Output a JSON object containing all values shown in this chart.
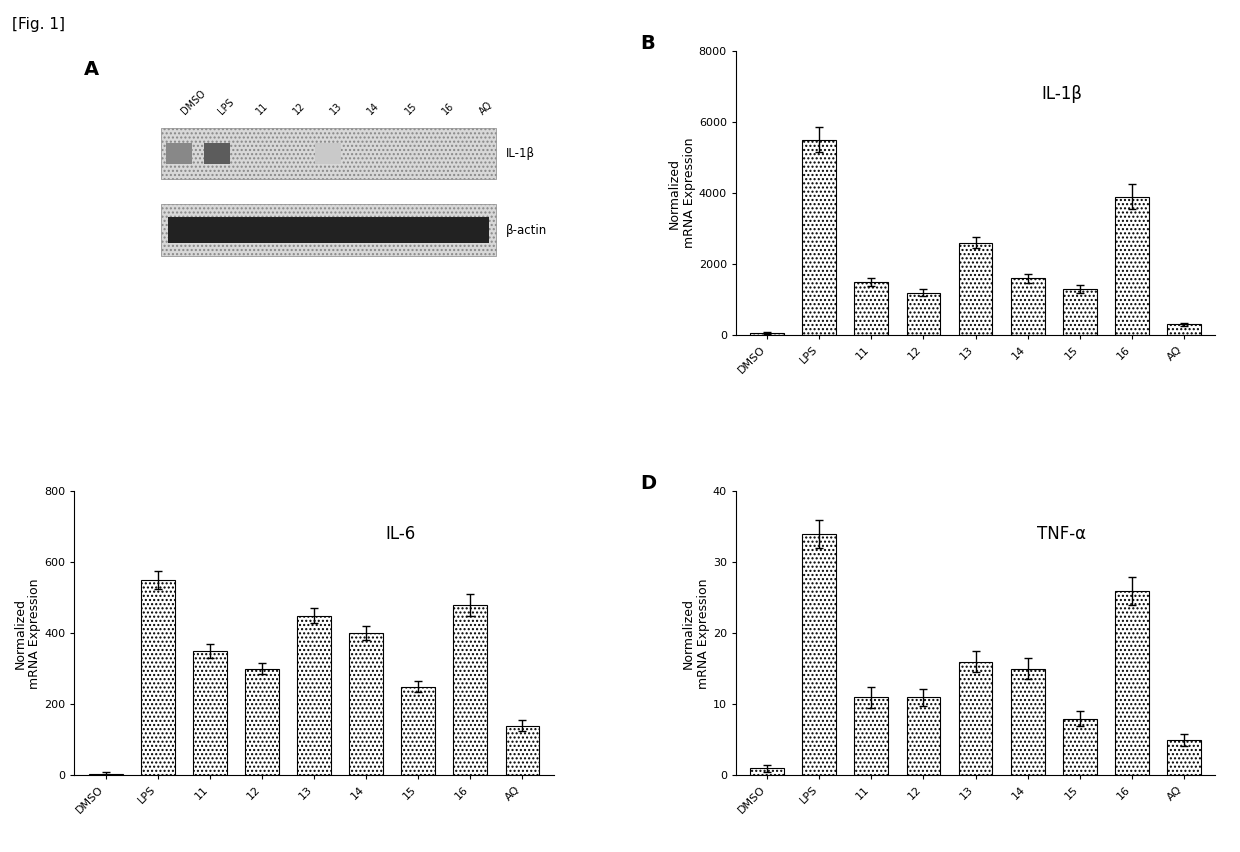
{
  "categories": [
    "DMSO",
    "LPS",
    "11",
    "12",
    "13",
    "14",
    "15",
    "16",
    "AQ"
  ],
  "panel_B": {
    "title": "IL-1β",
    "ylabel": "Normalized\nmRNA Expression",
    "values": [
      50,
      5500,
      1500,
      1200,
      2600,
      1600,
      1300,
      3900,
      300
    ],
    "errors": [
      30,
      350,
      120,
      100,
      150,
      130,
      110,
      350,
      50
    ],
    "ylim": [
      0,
      8000
    ],
    "yticks": [
      0,
      2000,
      4000,
      6000,
      8000
    ]
  },
  "panel_C": {
    "title": "IL-6",
    "ylabel": "Normalized\nmRNA Expression",
    "values": [
      5,
      550,
      350,
      300,
      450,
      400,
      250,
      480,
      140
    ],
    "errors": [
      3,
      25,
      20,
      15,
      20,
      20,
      15,
      30,
      15
    ],
    "ylim": [
      0,
      800
    ],
    "yticks": [
      0,
      200,
      400,
      600,
      800
    ]
  },
  "panel_D": {
    "title": "TNF-α",
    "ylabel": "Normalized\nmRNA Expression",
    "values": [
      1,
      34,
      11,
      11,
      16,
      15,
      8,
      26,
      5
    ],
    "errors": [
      0.5,
      2,
      1.5,
      1.2,
      1.5,
      1.5,
      1.0,
      2.0,
      0.8
    ],
    "ylim": [
      0,
      40
    ],
    "yticks": [
      0,
      10,
      20,
      30,
      40
    ]
  },
  "bar_color": "white",
  "bar_edgecolor": "black",
  "bar_hatch": "....",
  "fig_label_fontsize": 14,
  "axis_label_fontsize": 9,
  "tick_fontsize": 8,
  "title_fontsize": 12,
  "background_color": "white",
  "fig_title": "[Fig. 1]",
  "blot_bg_color": "#d8d8d8",
  "blot_band_colors_IL1b": [
    "#555555",
    "#888888",
    "#cccccc",
    "#cccccc",
    "#bbbbbb",
    "#cccccc",
    "#cccccc",
    "#cccccc",
    "#cccccc"
  ],
  "actin_band_color": "#222222",
  "actin_bg_color": "#bbbbbb"
}
